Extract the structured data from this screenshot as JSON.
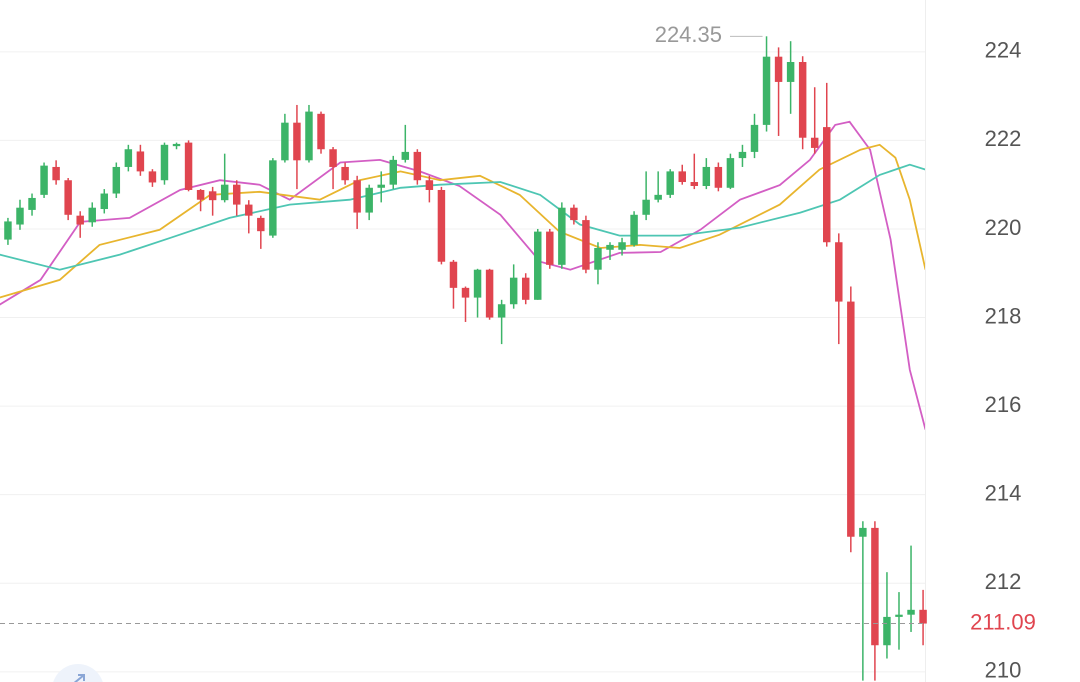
{
  "chart_data": {
    "type": "candlestick",
    "categories": [
      null,
      null,
      null,
      null,
      null,
      null,
      null,
      null,
      null,
      null,
      null,
      null,
      null,
      null,
      null,
      null,
      null,
      null,
      null,
      null,
      null,
      null,
      null,
      null,
      null,
      null,
      null,
      null,
      null,
      null,
      null,
      null,
      null,
      null,
      null,
      null,
      null,
      null,
      null,
      null,
      null,
      null,
      null,
      null,
      null,
      null,
      null,
      null,
      null,
      null,
      null,
      null,
      null,
      null,
      null,
      null,
      null,
      null,
      null,
      null,
      null,
      null,
      null,
      null,
      null,
      null,
      null,
      null,
      null,
      null,
      null,
      null,
      null,
      null,
      null,
      null,
      null
    ],
    "open": [
      219.76,
      220.1,
      220.43,
      220.77,
      221.4,
      221.1,
      220.3,
      220.15,
      220.45,
      220.8,
      221.4,
      221.75,
      221.3,
      221.1,
      221.87,
      221.95,
      220.88,
      220.85,
      220.65,
      221.0,
      220.55,
      220.25,
      219.85,
      221.55,
      222.4,
      221.55,
      222.6,
      221.8,
      221.4,
      221.1,
      220.37,
      220.93,
      221.0,
      221.56,
      221.74,
      221.1,
      220.88,
      219.26,
      218.67,
      218.45,
      219.08,
      218.0,
      218.3,
      218.9,
      218.4,
      219.94,
      219.19,
      220.48,
      220.2,
      219.08,
      219.53,
      219.53,
      219.64,
      220.32,
      220.66,
      220.77,
      221.3,
      221.06,
      220.97,
      221.4,
      220.93,
      221.6,
      221.74,
      222.35,
      223.89,
      223.32,
      223.77,
      222.06,
      222.3,
      219.7,
      218.36,
      213.05,
      213.25,
      210.6,
      211.24,
      211.29,
      211.4
    ],
    "high": [
      220.25,
      220.66,
      220.8,
      221.5,
      221.55,
      221.15,
      220.4,
      220.6,
      220.9,
      221.5,
      221.9,
      221.9,
      221.35,
      221.95,
      221.95,
      222.0,
      220.9,
      220.95,
      221.7,
      221.1,
      220.65,
      220.3,
      221.6,
      222.6,
      222.8,
      222.8,
      222.65,
      221.85,
      221.5,
      221.2,
      221.0,
      221.3,
      221.65,
      222.35,
      221.8,
      221.2,
      220.95,
      219.3,
      218.7,
      219.1,
      219.1,
      218.4,
      219.2,
      219.0,
      220.0,
      220.0,
      220.6,
      220.55,
      220.3,
      219.7,
      219.7,
      219.8,
      220.4,
      221.3,
      221.3,
      221.35,
      221.45,
      221.7,
      221.6,
      221.5,
      221.7,
      221.9,
      222.6,
      224.35,
      224.1,
      224.24,
      223.9,
      223.2,
      223.3,
      219.9,
      218.7,
      213.4,
      213.4,
      212.25,
      211.8,
      212.85,
      211.85
    ],
    "low": [
      219.64,
      219.98,
      220.3,
      220.7,
      221.0,
      220.2,
      219.8,
      220.05,
      220.35,
      220.7,
      221.3,
      221.2,
      220.95,
      221.0,
      221.8,
      220.85,
      220.4,
      220.3,
      220.6,
      220.3,
      219.9,
      219.55,
      219.8,
      221.5,
      220.9,
      221.5,
      221.7,
      220.9,
      221.0,
      220.0,
      220.2,
      220.6,
      220.9,
      221.5,
      221.0,
      220.6,
      219.2,
      218.2,
      217.9,
      218.0,
      217.95,
      217.4,
      218.2,
      218.3,
      218.4,
      219.1,
      219.1,
      220.1,
      219.0,
      218.75,
      219.3,
      219.4,
      219.6,
      220.2,
      220.6,
      220.7,
      221.0,
      220.9,
      220.9,
      220.85,
      220.9,
      221.4,
      221.6,
      222.2,
      222.1,
      222.6,
      221.8,
      221.7,
      219.6,
      217.4,
      212.7,
      209.8,
      209.8,
      210.3,
      210.5,
      210.9,
      210.6
    ],
    "close": [
      220.17,
      220.48,
      220.7,
      221.43,
      221.1,
      220.32,
      220.1,
      220.48,
      220.8,
      221.4,
      221.8,
      221.3,
      221.05,
      221.9,
      221.92,
      220.88,
      220.66,
      220.65,
      221.0,
      220.55,
      220.3,
      219.95,
      221.55,
      222.4,
      221.55,
      222.65,
      221.8,
      221.4,
      221.1,
      220.37,
      220.93,
      221.0,
      221.56,
      221.74,
      221.1,
      220.88,
      219.26,
      218.67,
      218.45,
      219.08,
      218.0,
      218.3,
      218.9,
      218.4,
      219.94,
      219.19,
      220.48,
      220.2,
      219.08,
      219.57,
      219.64,
      219.7,
      220.32,
      220.66,
      220.77,
      221.3,
      221.06,
      220.97,
      221.4,
      220.93,
      221.6,
      221.74,
      222.35,
      223.89,
      223.32,
      223.77,
      222.06,
      221.83,
      219.7,
      218.36,
      213.05,
      213.25,
      210.6,
      211.24,
      211.29,
      211.4,
      211.09
    ],
    "up_color": "#3cb468",
    "down_color": "#e0454f",
    "series": [
      {
        "color": "#d35ec4",
        "x": [
          -0.7,
          2.7,
          6.0,
          10.1,
          14.3,
          17.6,
          20.9,
          23.4,
          27.6,
          30.9,
          34.2,
          37.5,
          40.9,
          44.2,
          46.7,
          50.8,
          54.2,
          57.5,
          60.8,
          64.1,
          66.6,
          68.7,
          69.9,
          71.6,
          73.3,
          74.9,
          76.2
        ],
        "values": [
          218.29,
          218.85,
          220.16,
          220.25,
          220.88,
          221.1,
          221.0,
          220.66,
          221.5,
          221.56,
          221.3,
          220.97,
          220.32,
          219.26,
          219.08,
          219.46,
          219.48,
          219.98,
          220.66,
          220.99,
          221.56,
          222.35,
          222.42,
          221.79,
          219.76,
          216.82,
          215.47
        ]
      },
      {
        "color": "#e8b52e",
        "x": [
          -0.7,
          4.3,
          7.6,
          12.6,
          16.8,
          20.9,
          25.9,
          29.2,
          32.6,
          35.9,
          39.2,
          42.5,
          45.8,
          49.2,
          52.5,
          55.8,
          59.1,
          64.1,
          67.4,
          70.8,
          72.4,
          73.7,
          74.9,
          76.2
        ],
        "values": [
          218.45,
          218.85,
          219.64,
          219.98,
          220.77,
          220.84,
          220.66,
          221.1,
          221.3,
          221.1,
          221.2,
          220.77,
          219.94,
          219.57,
          219.64,
          219.57,
          219.87,
          220.55,
          221.34,
          221.79,
          221.9,
          221.61,
          220.66,
          219.08
        ]
      },
      {
        "color": "#4ec6b3",
        "x": [
          -0.7,
          4.3,
          9.3,
          13.5,
          18.4,
          23.4,
          28.4,
          32.6,
          35.9,
          40.9,
          44.2,
          47.5,
          50.8,
          55.8,
          60.8,
          65.8,
          69.1,
          72.4,
          74.9,
          76.2
        ],
        "values": [
          219.42,
          219.08,
          219.42,
          219.8,
          220.25,
          220.55,
          220.66,
          220.93,
          221.0,
          221.06,
          220.77,
          220.1,
          219.85,
          219.85,
          220.03,
          220.37,
          220.66,
          221.22,
          221.45,
          221.34
        ]
      }
    ],
    "max_high": 224.35,
    "last_price": 211.09,
    "xlim": [
      -0.66,
      76.16
    ],
    "ylim": [
      209.77,
      225.17
    ],
    "yticks": [
      210,
      212,
      214,
      216,
      218,
      220,
      222,
      224
    ],
    "grid": true
  }
}
